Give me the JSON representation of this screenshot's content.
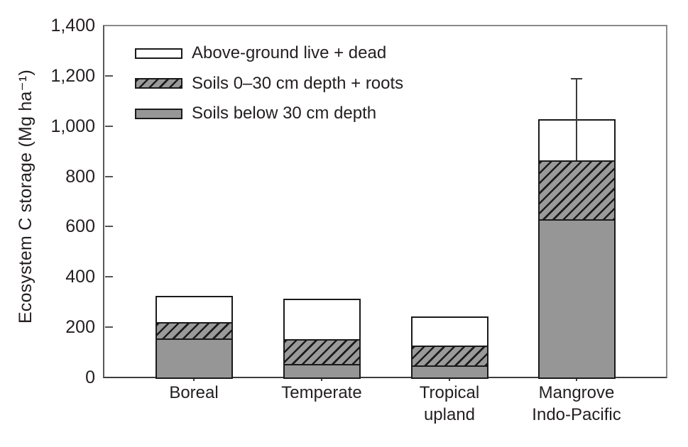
{
  "colors": {
    "background": "#ffffff",
    "bar_fill_gray": "#969696",
    "bar_outline": "#1a1a1a",
    "hatch_line": "#1b1b1b",
    "axis_dark": "#3d3d3d",
    "frame_light": "#8a8a8a",
    "text": "#231f20"
  },
  "chart_data": {
    "type": "bar",
    "stacked": true,
    "title": "",
    "xlabel": "",
    "ylabel": "Ecosystem C storage (Mg ha⁻¹)",
    "ylim": [
      0,
      1400
    ],
    "grid": false,
    "legend_position": "top-left-inside",
    "categories": [
      "Boreal",
      "Temperate",
      "Tropical upland",
      "Mangrove Indo-Pacific"
    ],
    "x_labels": [
      [
        "Boreal"
      ],
      [
        "Temperate"
      ],
      [
        "Tropical",
        "upland"
      ],
      [
        "Mangrove",
        "Indo-Pacific"
      ]
    ],
    "series": [
      {
        "name": "Soils below 30 cm depth",
        "style": "solid-gray",
        "values": [
          156,
          55,
          49,
          629
        ]
      },
      {
        "name": "Soils 0–30 cm depth + roots",
        "style": "hatched",
        "values": [
          63,
          98,
          78,
          235
        ]
      },
      {
        "name": "Above-ground live + dead",
        "style": "white",
        "values": [
          106,
          161,
          117,
          163
        ]
      }
    ],
    "stack_totals": [
      325,
      314,
      244,
      1027
    ],
    "error_bar": {
      "category": "Mangrove Indo-Pacific",
      "category_index": 3,
      "line_from": 864,
      "line_to": 1188
    },
    "y_ticks": [
      {
        "label": "0",
        "value": 0
      },
      {
        "label": "200",
        "value": 200
      },
      {
        "label": "400",
        "value": 400
      },
      {
        "label": "600",
        "value": 600
      },
      {
        "label": "800",
        "value": 800
      },
      {
        "label": "1,000",
        "value": 1000
      },
      {
        "label": "1,200",
        "value": 1200
      },
      {
        "label": "1,400",
        "value": 1400
      }
    ],
    "legend": [
      {
        "label": "Above-ground live + dead",
        "swatch": "white"
      },
      {
        "label": "Soils 0–30 cm depth + roots",
        "swatch": "hatched"
      },
      {
        "label": "Soils below 30 cm depth",
        "swatch": "solid-gray"
      }
    ]
  }
}
